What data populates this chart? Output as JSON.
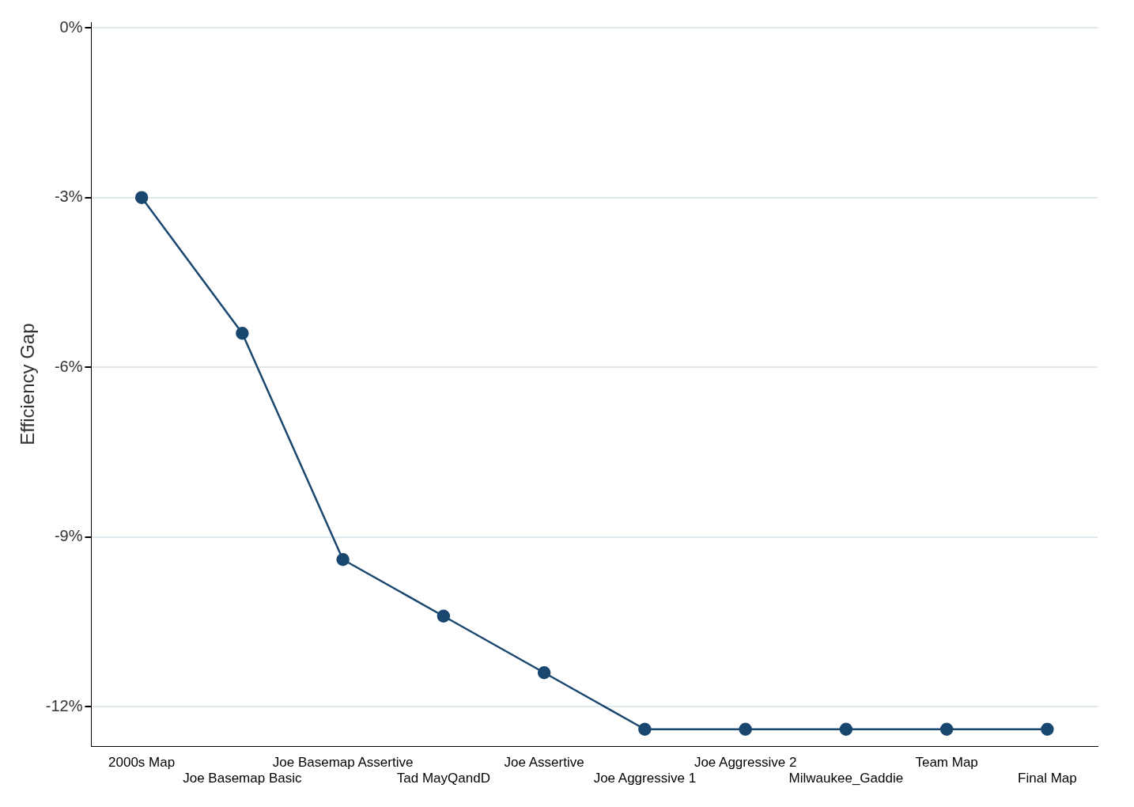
{
  "chart_data": {
    "type": "line",
    "ylabel": "Efficiency Gap",
    "categories": [
      "2000s Map",
      "Joe Basemap Basic",
      "Joe Basemap Assertive",
      "Tad MayQandD",
      "Joe Assertive",
      "Joe Aggressive 1",
      "Joe Aggressive 2",
      "Milwaukee_Gaddie",
      "Team Map",
      "Final Map"
    ],
    "series": [
      {
        "color": "#1a476f",
        "values": [
          -3,
          -5.4,
          -9.4,
          -10.4,
          -11.4,
          -12.4,
          -12.4,
          -12.4,
          -12.4,
          -12.4
        ]
      }
    ],
    "ylim": [
      -12.7,
      0.1
    ],
    "yticks": [
      {
        "value": -12,
        "label": "-12%"
      },
      {
        "value": -9,
        "label": "-9%"
      },
      {
        "value": -6,
        "label": "-6%"
      },
      {
        "value": -3,
        "label": "-3%"
      },
      {
        "value": 0,
        "label": "0%"
      }
    ],
    "grid": "y",
    "marker": "circle",
    "line_style": "solid",
    "legend": false
  }
}
